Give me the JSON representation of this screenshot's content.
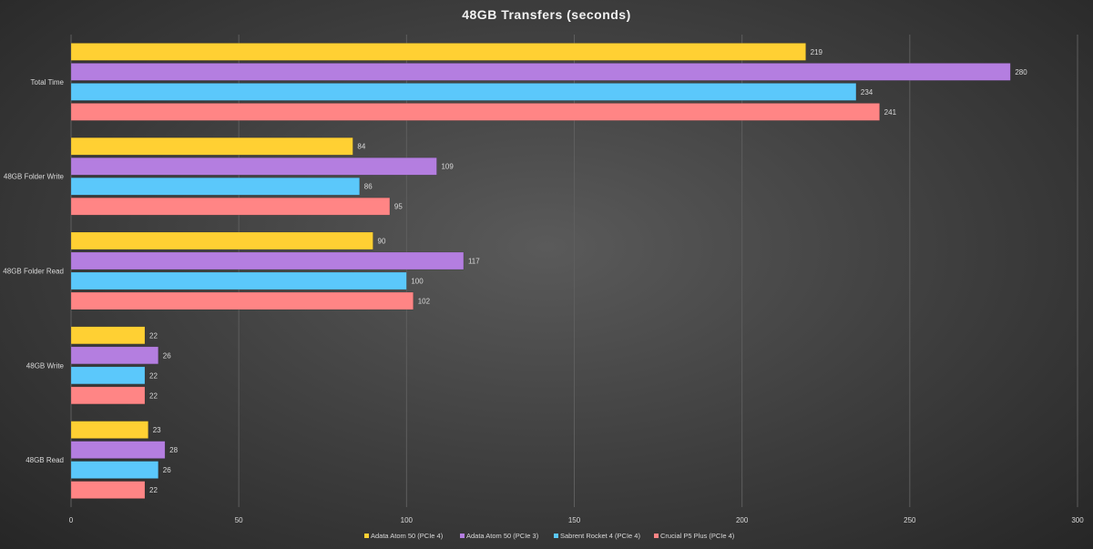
{
  "chart_data": {
    "type": "bar",
    "orientation": "horizontal",
    "title": "48GB Transfers  (seconds)",
    "categories": [
      "Total Time",
      "48GB Folder Write",
      "48GB Folder Read",
      "48GB Write",
      "48GB Read"
    ],
    "series": [
      {
        "name": "Adata Atom 50 (PCIe 4)",
        "color": "#ffd033",
        "values": [
          219,
          84,
          90,
          22,
          23
        ]
      },
      {
        "name": "Adata Atom 50 (PCIe 3)",
        "color": "#b47ee0",
        "values": [
          280,
          109,
          117,
          26,
          28
        ]
      },
      {
        "name": "Sabrent Rocket 4 (PCIe 4)",
        "color": "#5bc8fb",
        "values": [
          234,
          86,
          100,
          22,
          26
        ]
      },
      {
        "name": "Crucial P5 Plus (PCIe 4)",
        "color": "#ff8585",
        "values": [
          241,
          95,
          102,
          22,
          22
        ]
      }
    ],
    "xlim": [
      0,
      300
    ],
    "xticks": [
      0,
      50,
      100,
      150,
      200,
      250,
      300
    ],
    "grid": true,
    "legend_position": "bottom",
    "xlabel": "",
    "ylabel": ""
  }
}
